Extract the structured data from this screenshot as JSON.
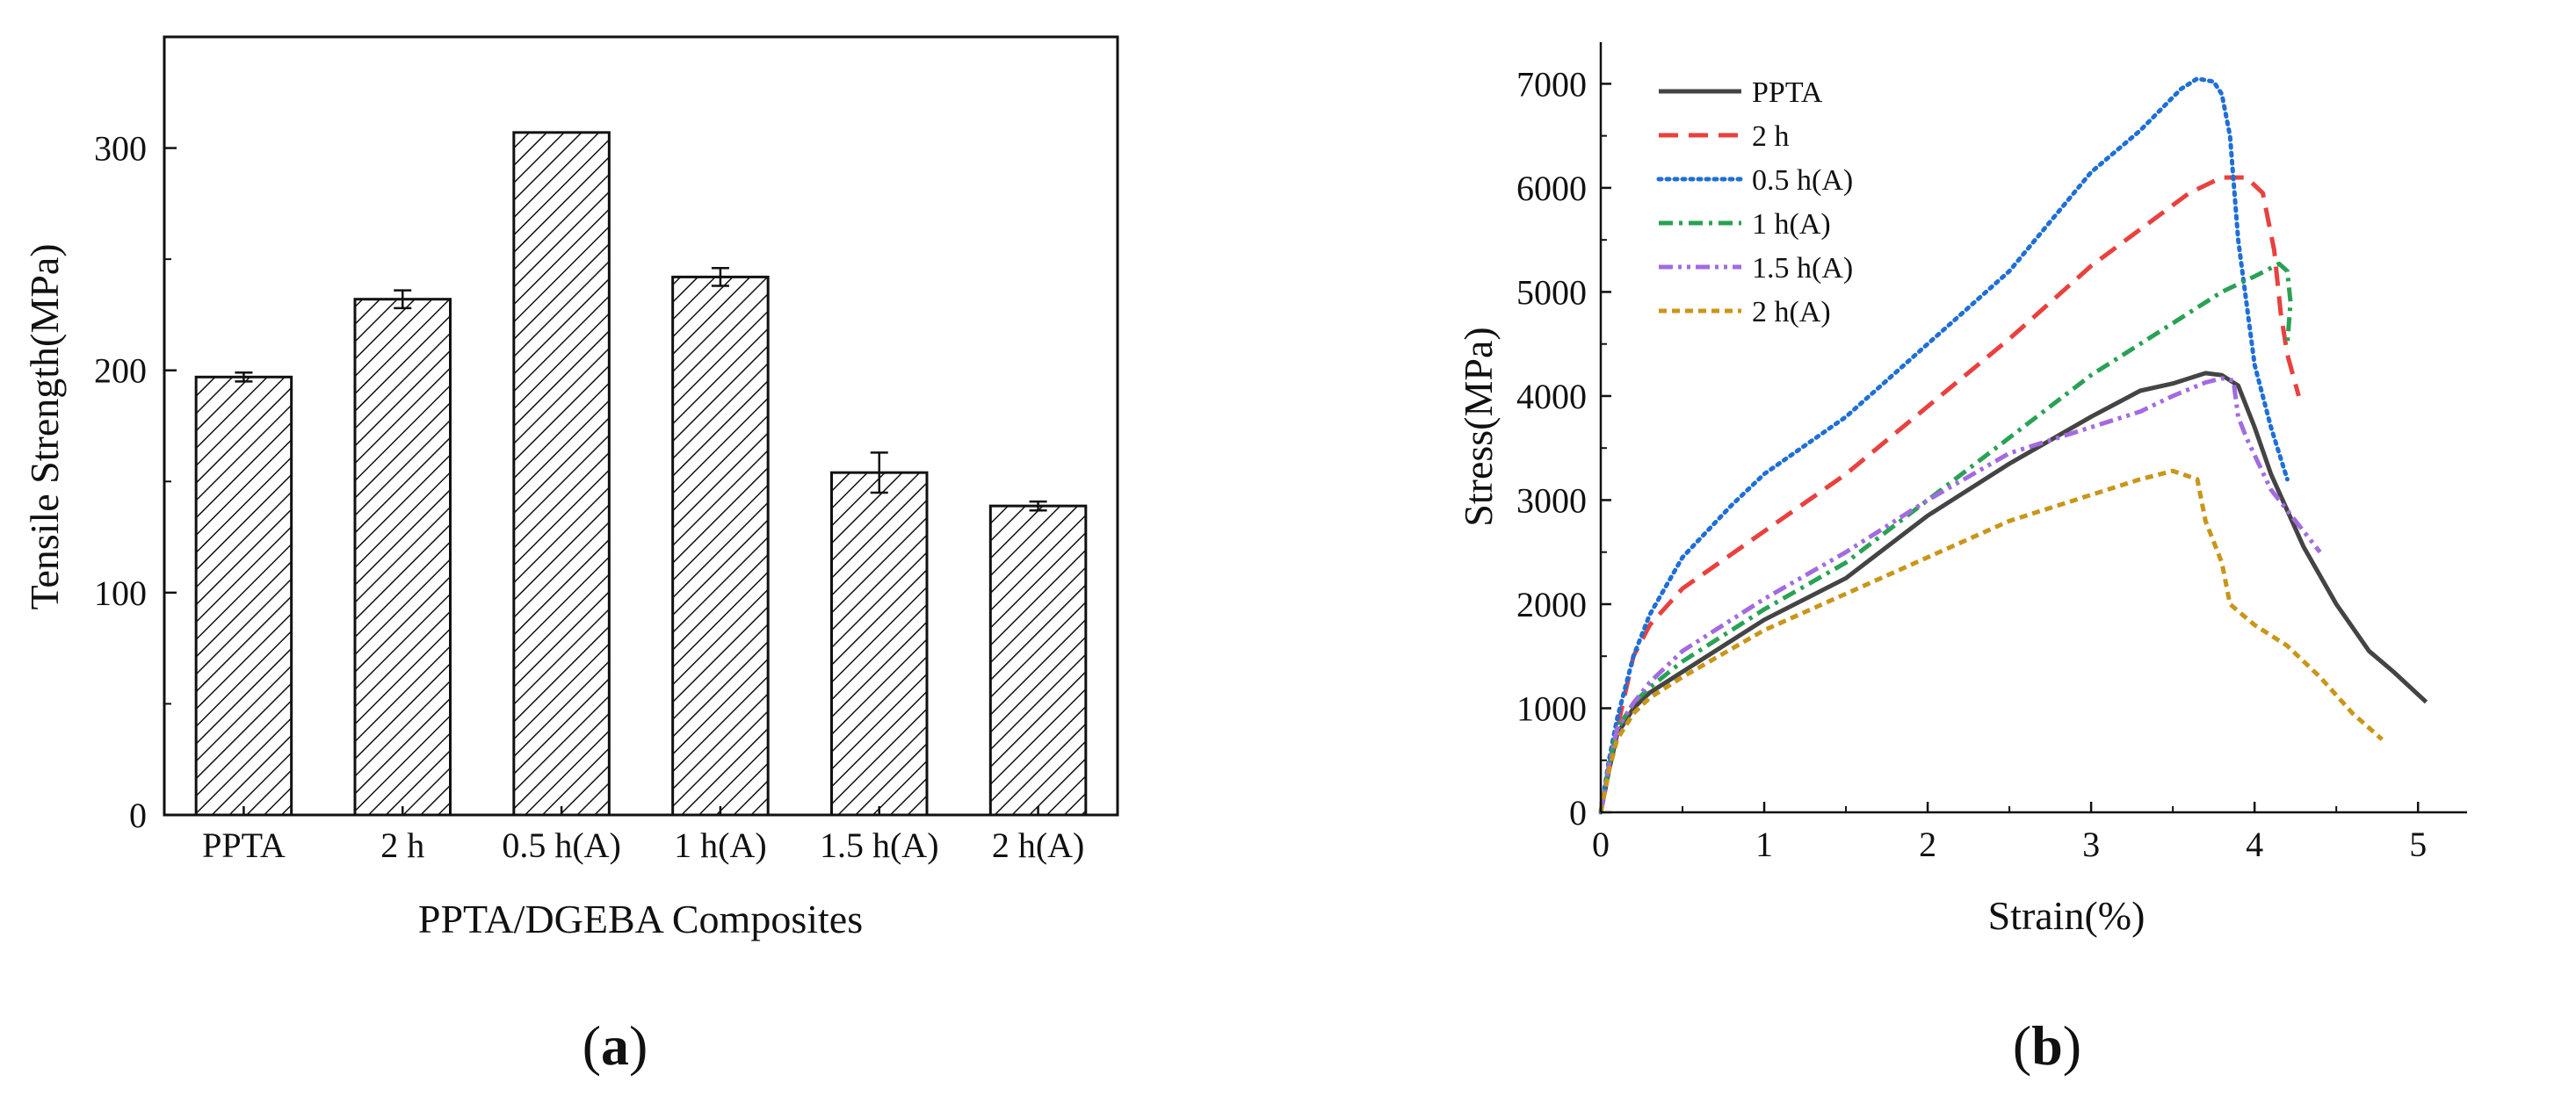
{
  "chart_data": [
    {
      "type": "bar",
      "panel": "(a)",
      "panel_letter": "a",
      "xlabel": "PPTA/DGEBA Composites",
      "ylabel": "Tensile Strength(MPa)",
      "ylim": [
        0,
        350
      ],
      "yticks": [
        0,
        100,
        200,
        300
      ],
      "categories": [
        "PPTA",
        "2 h",
        "0.5 h(A)",
        "1 h(A)",
        "1.5 h(A)",
        "2 h(A)"
      ],
      "values": [
        197,
        232,
        307,
        242,
        154,
        139
      ],
      "errors": [
        2,
        4,
        0,
        4,
        9,
        2
      ],
      "bar_fill": "diagonal hatch",
      "grid": false
    },
    {
      "type": "line",
      "panel": "(b)",
      "panel_letter": "b",
      "xlabel": "Strain(%)",
      "ylabel": "Stress(MPa)",
      "xlim": [
        0,
        5.3
      ],
      "ylim": [
        0,
        7400
      ],
      "xticks": [
        0,
        1,
        2,
        3,
        4,
        5
      ],
      "yticks": [
        0,
        1000,
        2000,
        3000,
        4000,
        5000,
        6000,
        7000
      ],
      "legend_position": "top-left",
      "grid": false,
      "series": [
        {
          "name": "PPTA",
          "color": "#444444",
          "dash": "solid",
          "points": [
            [
              0,
              0
            ],
            [
              0.05,
              400
            ],
            [
              0.1,
              750
            ],
            [
              0.2,
              1000
            ],
            [
              0.3,
              1150
            ],
            [
              0.5,
              1350
            ],
            [
              0.8,
              1650
            ],
            [
              1,
              1850
            ],
            [
              1.5,
              2250
            ],
            [
              2,
              2850
            ],
            [
              2.5,
              3350
            ],
            [
              3,
              3800
            ],
            [
              3.3,
              4050
            ],
            [
              3.5,
              4120
            ],
            [
              3.7,
              4220
            ],
            [
              3.8,
              4200
            ],
            [
              3.9,
              4100
            ],
            [
              4,
              3700
            ],
            [
              4.1,
              3250
            ],
            [
              4.2,
              2900
            ],
            [
              4.3,
              2550
            ],
            [
              4.5,
              2000
            ],
            [
              4.7,
              1550
            ],
            [
              4.85,
              1350
            ],
            [
              5.05,
              1060
            ]
          ]
        },
        {
          "name": "2 h",
          "color": "#e8413e",
          "dash": "long",
          "points": [
            [
              0,
              0
            ],
            [
              0.05,
              450
            ],
            [
              0.1,
              800
            ],
            [
              0.2,
              1500
            ],
            [
              0.3,
              1800
            ],
            [
              0.5,
              2150
            ],
            [
              1,
              2700
            ],
            [
              1.5,
              3250
            ],
            [
              2,
              3900
            ],
            [
              2.5,
              4550
            ],
            [
              3,
              5250
            ],
            [
              3.3,
              5600
            ],
            [
              3.6,
              5950
            ],
            [
              3.8,
              6100
            ],
            [
              3.95,
              6100
            ],
            [
              4.05,
              5950
            ],
            [
              4.12,
              5400
            ],
            [
              4.16,
              4800
            ],
            [
              4.2,
              4400
            ],
            [
              4.27,
              4000
            ]
          ]
        },
        {
          "name": "0.5 h(A)",
          "color": "#1f6fd6",
          "dash": "dot",
          "points": [
            [
              0,
              0
            ],
            [
              0.05,
              500
            ],
            [
              0.1,
              900
            ],
            [
              0.2,
              1500
            ],
            [
              0.3,
              1900
            ],
            [
              0.5,
              2450
            ],
            [
              0.8,
              2950
            ],
            [
              1,
              3250
            ],
            [
              1.5,
              3800
            ],
            [
              2,
              4500
            ],
            [
              2.5,
              5200
            ],
            [
              3,
              6150
            ],
            [
              3.3,
              6550
            ],
            [
              3.55,
              6950
            ],
            [
              3.65,
              7050
            ],
            [
              3.75,
              7020
            ],
            [
              3.8,
              6900
            ],
            [
              3.85,
              6500
            ],
            [
              3.9,
              5500
            ],
            [
              4,
              4300
            ],
            [
              4.1,
              3700
            ],
            [
              4.2,
              3200
            ]
          ]
        },
        {
          "name": "1 h(A)",
          "color": "#2aa155",
          "dash": "dashdot",
          "points": [
            [
              0,
              0
            ],
            [
              0.05,
              450
            ],
            [
              0.1,
              800
            ],
            [
              0.2,
              1050
            ],
            [
              0.3,
              1200
            ],
            [
              0.5,
              1450
            ],
            [
              1,
              1950
            ],
            [
              1.5,
              2400
            ],
            [
              2,
              3000
            ],
            [
              2.5,
              3600
            ],
            [
              3,
              4200
            ],
            [
              3.5,
              4700
            ],
            [
              3.8,
              5000
            ],
            [
              4,
              5150
            ],
            [
              4.15,
              5270
            ],
            [
              4.2,
              5200
            ],
            [
              4.22,
              4900
            ],
            [
              4.2,
              4500
            ]
          ]
        },
        {
          "name": "1.5 h(A)",
          "color": "#a36be0",
          "dash": "dashdotdot",
          "points": [
            [
              0,
              0
            ],
            [
              0.05,
              450
            ],
            [
              0.1,
              800
            ],
            [
              0.2,
              1050
            ],
            [
              0.3,
              1250
            ],
            [
              0.5,
              1550
            ],
            [
              1,
              2050
            ],
            [
              1.5,
              2500
            ],
            [
              2,
              3000
            ],
            [
              2.5,
              3450
            ],
            [
              3,
              3700
            ],
            [
              3.3,
              3850
            ],
            [
              3.5,
              4000
            ],
            [
              3.7,
              4130
            ],
            [
              3.8,
              4170
            ],
            [
              3.87,
              4150
            ],
            [
              3.9,
              3800
            ],
            [
              3.95,
              3600
            ],
            [
              4.1,
              3100
            ],
            [
              4.3,
              2700
            ],
            [
              4.4,
              2500
            ]
          ]
        },
        {
          "name": "2 h(A)",
          "color": "#c9961a",
          "dash": "short",
          "points": [
            [
              0,
              0
            ],
            [
              0.05,
              400
            ],
            [
              0.1,
              700
            ],
            [
              0.2,
              950
            ],
            [
              0.3,
              1100
            ],
            [
              0.5,
              1300
            ],
            [
              1,
              1750
            ],
            [
              1.5,
              2100
            ],
            [
              2,
              2450
            ],
            [
              2.5,
              2800
            ],
            [
              3,
              3050
            ],
            [
              3.3,
              3200
            ],
            [
              3.5,
              3280
            ],
            [
              3.65,
              3200
            ],
            [
              3.7,
              2800
            ],
            [
              3.8,
              2400
            ],
            [
              3.85,
              2000
            ],
            [
              4,
              1800
            ],
            [
              4.2,
              1600
            ],
            [
              4.4,
              1300
            ],
            [
              4.6,
              950
            ],
            [
              4.78,
              700
            ]
          ]
        }
      ]
    }
  ]
}
